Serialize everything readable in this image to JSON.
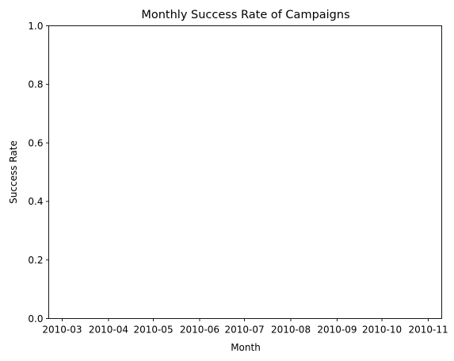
{
  "chart_data": {
    "type": "line",
    "title": "Monthly Success Rate of Campaigns",
    "xlabel": "Month",
    "ylabel": "Success Rate",
    "x_ticks": [
      "2010-03",
      "2010-04",
      "2010-05",
      "2010-06",
      "2010-07",
      "2010-08",
      "2010-09",
      "2010-10",
      "2010-11"
    ],
    "xlim": [
      "2010-02-20",
      "2010-11-10"
    ],
    "ylim": [
      0,
      1
    ],
    "y_ticks": [
      "0.0",
      "0.2",
      "0.4",
      "0.6",
      "0.8",
      "1.0"
    ],
    "series": [],
    "grid": false,
    "legend": "none"
  }
}
